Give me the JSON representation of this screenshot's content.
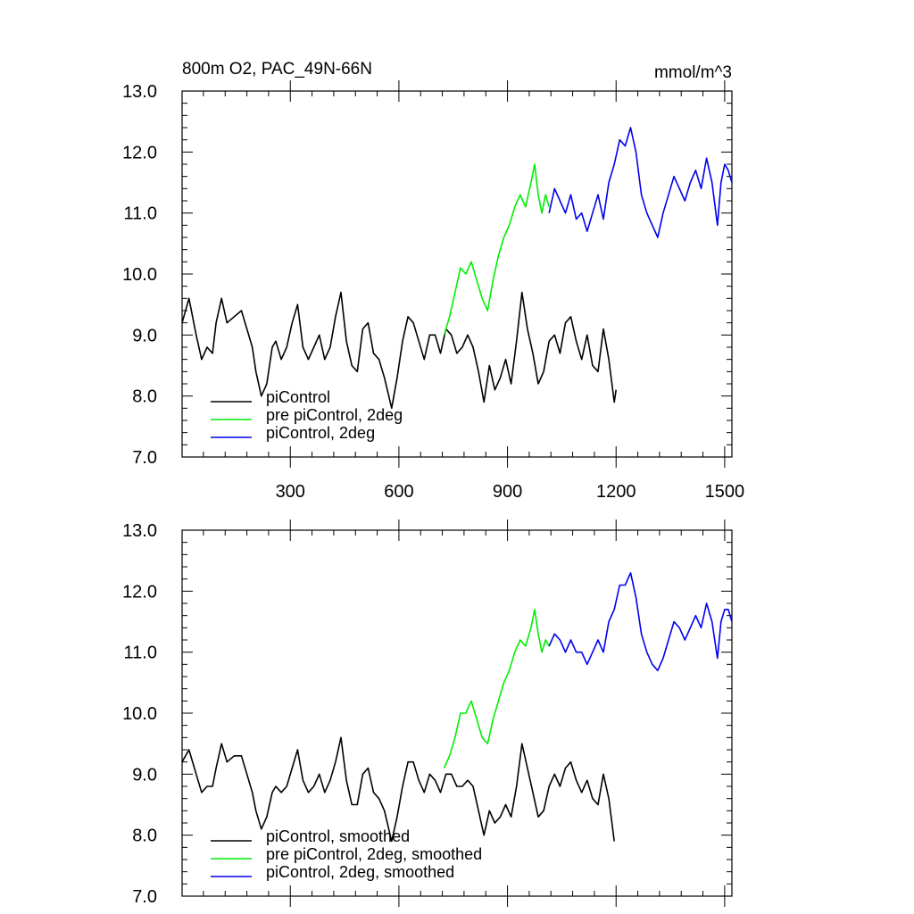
{
  "chart_data": [
    {
      "type": "line",
      "title_left": "800m O2, PAC_49N-66N",
      "title_right": "mmol/m^3",
      "xlim": [
        1,
        1520
      ],
      "ylim": [
        7.0,
        13.0
      ],
      "xticks": [
        300,
        600,
        900,
        1200,
        1500
      ],
      "xtick_labels": [
        "300",
        "600",
        "900",
        "1200",
        "1500"
      ],
      "yticks": [
        7.0,
        8.0,
        9.0,
        10.0,
        11.0,
        12.0,
        13.0
      ],
      "ytick_labels": [
        "7.0",
        "8.0",
        "9.0",
        "10.0",
        "11.0",
        "12.0",
        "13.0"
      ],
      "legend_position": "bottom-left",
      "series": [
        {
          "name": "piControl",
          "color": "#000000",
          "x": [
            1,
            20,
            40,
            55,
            70,
            85,
            95,
            110,
            125,
            145,
            165,
            180,
            195,
            205,
            220,
            235,
            250,
            260,
            275,
            290,
            305,
            320,
            335,
            350,
            365,
            380,
            395,
            410,
            425,
            440,
            455,
            470,
            485,
            500,
            515,
            530,
            545,
            560,
            580,
            595,
            610,
            625,
            640,
            655,
            670,
            685,
            700,
            715,
            730,
            745,
            760,
            775,
            790,
            805,
            820,
            835,
            850,
            865,
            880,
            895,
            910,
            925,
            940,
            955,
            970,
            985,
            1000,
            1015,
            1030,
            1045,
            1060,
            1075,
            1090,
            1105,
            1120,
            1135,
            1150,
            1165,
            1180,
            1195,
            1200
          ],
          "values": [
            9.2,
            9.6,
            9.0,
            8.6,
            8.8,
            8.7,
            9.2,
            9.6,
            9.2,
            9.3,
            9.4,
            9.1,
            8.8,
            8.4,
            8.0,
            8.2,
            8.8,
            8.9,
            8.6,
            8.8,
            9.2,
            9.5,
            8.8,
            8.6,
            8.8,
            9.0,
            8.6,
            8.8,
            9.3,
            9.7,
            8.9,
            8.5,
            8.4,
            9.1,
            9.2,
            8.7,
            8.6,
            8.3,
            7.8,
            8.3,
            8.9,
            9.3,
            9.2,
            8.9,
            8.6,
            9.0,
            9.0,
            8.7,
            9.1,
            9.0,
            8.7,
            8.8,
            9.0,
            8.8,
            8.4,
            7.9,
            8.5,
            8.1,
            8.3,
            8.6,
            8.2,
            8.9,
            9.7,
            9.1,
            8.7,
            8.2,
            8.4,
            8.9,
            9.0,
            8.7,
            9.2,
            9.3,
            8.9,
            8.6,
            9.0,
            8.5,
            8.4,
            9.1,
            8.6,
            7.9,
            8.1
          ]
        },
        {
          "name": "pre piControl, 2deg",
          "color": "#00ee00",
          "x": [
            725,
            740,
            755,
            770,
            785,
            800,
            815,
            830,
            845,
            860,
            875,
            890,
            905,
            920,
            935,
            950,
            965,
            975,
            985,
            995,
            1005,
            1015
          ],
          "values": [
            9.0,
            9.3,
            9.7,
            10.1,
            10.0,
            10.2,
            9.9,
            9.6,
            9.4,
            9.9,
            10.3,
            10.6,
            10.8,
            11.1,
            11.3,
            11.1,
            11.5,
            11.8,
            11.3,
            11.0,
            11.3,
            11.1
          ]
        },
        {
          "name": "piControl, 2deg",
          "color": "#0000ee",
          "x": [
            1015,
            1030,
            1045,
            1060,
            1075,
            1090,
            1105,
            1120,
            1135,
            1150,
            1165,
            1180,
            1195,
            1210,
            1225,
            1240,
            1255,
            1270,
            1285,
            1300,
            1315,
            1330,
            1345,
            1360,
            1375,
            1390,
            1405,
            1420,
            1435,
            1450,
            1465,
            1480,
            1490,
            1500,
            1510,
            1520
          ],
          "values": [
            11.0,
            11.4,
            11.2,
            11.0,
            11.3,
            10.9,
            11.0,
            10.7,
            11.0,
            11.3,
            10.9,
            11.5,
            11.8,
            12.2,
            12.1,
            12.4,
            12.0,
            11.3,
            11.0,
            10.8,
            10.6,
            11.0,
            11.3,
            11.6,
            11.4,
            11.2,
            11.5,
            11.7,
            11.4,
            11.9,
            11.5,
            10.8,
            11.5,
            11.8,
            11.7,
            11.5
          ]
        }
      ]
    },
    {
      "type": "line",
      "xlim": [
        1,
        1520
      ],
      "ylim": [
        7.0,
        13.0
      ],
      "xticks": [
        300,
        600,
        900,
        1200,
        1500
      ],
      "yticks": [
        7.0,
        8.0,
        9.0,
        10.0,
        11.0,
        12.0,
        13.0
      ],
      "ytick_labels": [
        "7.0",
        "8.0",
        "9.0",
        "10.0",
        "11.0",
        "12.0",
        "13.0"
      ],
      "legend_position": "bottom-left",
      "series": [
        {
          "name": "piControl, smoothed",
          "color": "#000000",
          "x": [
            1,
            20,
            40,
            55,
            70,
            85,
            95,
            110,
            125,
            145,
            165,
            180,
            195,
            205,
            220,
            235,
            250,
            260,
            275,
            290,
            305,
            320,
            335,
            350,
            365,
            380,
            395,
            410,
            425,
            440,
            455,
            470,
            485,
            500,
            515,
            530,
            545,
            560,
            580,
            595,
            610,
            625,
            640,
            655,
            670,
            685,
            700,
            715,
            730,
            745,
            760,
            775,
            790,
            805,
            820,
            835,
            850,
            865,
            880,
            895,
            910,
            925,
            940,
            955,
            970,
            985,
            1000,
            1015,
            1030,
            1045,
            1060,
            1075,
            1090,
            1105,
            1120,
            1135,
            1150,
            1165,
            1180,
            1195
          ],
          "values": [
            9.2,
            9.4,
            9.0,
            8.7,
            8.8,
            8.8,
            9.1,
            9.5,
            9.2,
            9.3,
            9.3,
            9.0,
            8.7,
            8.4,
            8.1,
            8.3,
            8.7,
            8.8,
            8.7,
            8.8,
            9.1,
            9.4,
            8.9,
            8.7,
            8.8,
            9.0,
            8.7,
            8.9,
            9.2,
            9.6,
            8.9,
            8.5,
            8.5,
            9.0,
            9.1,
            8.7,
            8.6,
            8.4,
            7.9,
            8.3,
            8.8,
            9.2,
            9.2,
            8.9,
            8.7,
            9.0,
            8.9,
            8.7,
            9.0,
            9.0,
            8.8,
            8.8,
            8.9,
            8.8,
            8.4,
            8.0,
            8.4,
            8.2,
            8.3,
            8.5,
            8.3,
            8.8,
            9.5,
            9.1,
            8.7,
            8.3,
            8.4,
            8.8,
            9.0,
            8.8,
            9.1,
            9.2,
            8.9,
            8.7,
            8.9,
            8.6,
            8.5,
            9.0,
            8.6,
            7.9
          ]
        },
        {
          "name": "pre piControl, 2deg, smoothed",
          "color": "#00ee00",
          "x": [
            725,
            740,
            755,
            770,
            785,
            800,
            815,
            830,
            845,
            860,
            875,
            890,
            905,
            920,
            935,
            950,
            965,
            975,
            985,
            995,
            1005,
            1015
          ],
          "values": [
            9.1,
            9.3,
            9.6,
            10.0,
            10.0,
            10.2,
            9.9,
            9.6,
            9.5,
            9.9,
            10.2,
            10.5,
            10.7,
            11.0,
            11.2,
            11.1,
            11.4,
            11.7,
            11.3,
            11.0,
            11.2,
            11.1
          ]
        },
        {
          "name": "piControl, 2deg, smoothed",
          "color": "#0000ee",
          "x": [
            1015,
            1030,
            1045,
            1060,
            1075,
            1090,
            1105,
            1120,
            1135,
            1150,
            1165,
            1180,
            1195,
            1210,
            1225,
            1240,
            1255,
            1270,
            1285,
            1300,
            1315,
            1330,
            1345,
            1360,
            1375,
            1390,
            1405,
            1420,
            1435,
            1450,
            1465,
            1480,
            1490,
            1500,
            1510,
            1520
          ],
          "values": [
            11.1,
            11.3,
            11.2,
            11.0,
            11.2,
            11.0,
            11.0,
            10.8,
            11.0,
            11.2,
            11.0,
            11.5,
            11.7,
            12.1,
            12.1,
            12.3,
            11.9,
            11.3,
            11.0,
            10.8,
            10.7,
            10.9,
            11.2,
            11.5,
            11.4,
            11.2,
            11.4,
            11.6,
            11.4,
            11.8,
            11.5,
            10.9,
            11.5,
            11.7,
            11.7,
            11.5
          ]
        }
      ]
    }
  ]
}
